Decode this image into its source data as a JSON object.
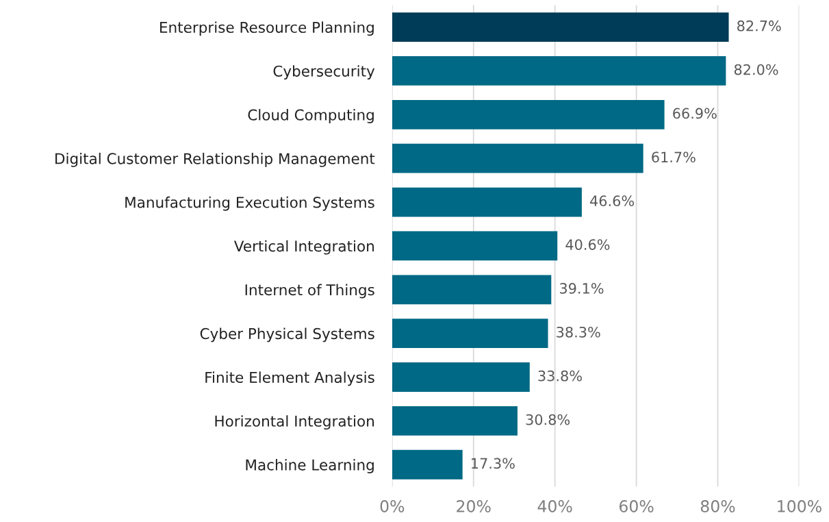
{
  "chart_data": {
    "type": "bar",
    "orientation": "horizontal",
    "categories": [
      "Enterprise Resource Planning",
      "Cybersecurity",
      "Cloud Computing",
      "Digital Customer Relationship Management",
      "Manufacturing Execution Systems",
      "Vertical Integration",
      "Internet of Things",
      "Cyber Physical Systems",
      "Finite Element Analysis",
      "Horizontal Integration",
      "Machine Learning"
    ],
    "values": [
      82.7,
      82.0,
      66.9,
      61.7,
      46.6,
      40.6,
      39.1,
      38.3,
      33.8,
      30.8,
      17.3
    ],
    "colors": [
      "#003b57",
      "#006985",
      "#006985",
      "#006985",
      "#006985",
      "#006985",
      "#006985",
      "#006985",
      "#006985",
      "#006985",
      "#006985"
    ],
    "value_labels": [
      "82.7%",
      "82.0%",
      "66.9%",
      "61.7%",
      "46.6%",
      "40.6%",
      "39.1%",
      "38.3%",
      "33.8%",
      "30.8%",
      "17.3%"
    ],
    "xlim": [
      0,
      100
    ],
    "xticks": [
      {
        "value": 0,
        "label": "0%"
      },
      {
        "value": 20,
        "label": "20%"
      },
      {
        "value": 40,
        "label": "40%"
      },
      {
        "value": 60,
        "label": "60%"
      },
      {
        "value": 80,
        "label": "80%"
      },
      {
        "value": 100,
        "label": "100%"
      }
    ],
    "grid": "x"
  }
}
